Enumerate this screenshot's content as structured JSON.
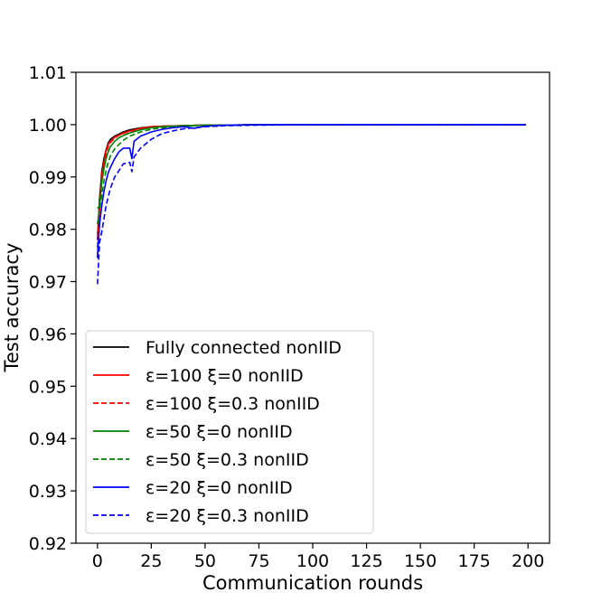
{
  "chart_data": {
    "type": "line",
    "title": "",
    "xlabel": "Communication rounds",
    "ylabel": "Test accuracy",
    "xlim": [
      -10,
      210
    ],
    "ylim": [
      0.92,
      1.01
    ],
    "xticks": [
      0,
      25,
      50,
      75,
      100,
      125,
      150,
      175,
      200
    ],
    "yticks": [
      0.92,
      0.93,
      0.94,
      0.95,
      0.96,
      0.97,
      0.98,
      0.99,
      1.0,
      1.01
    ],
    "ytick_labels": [
      "0.92",
      "0.93",
      "0.94",
      "0.95",
      "0.96",
      "0.97",
      "0.98",
      "0.99",
      "1.00",
      "1.01"
    ],
    "grid": false,
    "legend_position": "bottom-left",
    "series": [
      {
        "name": "Fully connected nonIID",
        "color": "#000000",
        "dash": "solid",
        "x": [
          0,
          1,
          2,
          3,
          4,
          5,
          6,
          8,
          10,
          12,
          15,
          20,
          25,
          30,
          40,
          50,
          60,
          75,
          100,
          150,
          199
        ],
        "y": [
          0.978,
          0.986,
          0.991,
          0.9935,
          0.9952,
          0.9965,
          0.9972,
          0.9978,
          0.9982,
          0.9986,
          0.999,
          0.9994,
          0.9996,
          0.9997,
          0.9998,
          0.9999,
          0.9999,
          1.0,
          1.0,
          1.0,
          1.0
        ]
      },
      {
        "name": "ε=100 ξ=0 nonIID",
        "color": "#ff0000",
        "dash": "solid",
        "x": [
          0,
          1,
          2,
          3,
          4,
          5,
          6,
          8,
          10,
          12,
          15,
          20,
          25,
          30,
          40,
          50,
          60,
          75,
          100,
          150,
          199
        ],
        "y": [
          0.9745,
          0.984,
          0.99,
          0.9928,
          0.995,
          0.9962,
          0.9968,
          0.9976,
          0.998,
          0.9984,
          0.9988,
          0.9993,
          0.9996,
          0.9997,
          0.9998,
          0.9999,
          0.9999,
          1.0,
          1.0,
          1.0,
          1.0
        ]
      },
      {
        "name": "ε=100 ξ=0.3 nonIID",
        "color": "#ff0000",
        "dash": "dashed",
        "x": [
          0,
          1,
          2,
          3,
          4,
          5,
          6,
          8,
          10,
          12,
          15,
          20,
          25,
          30,
          40,
          50,
          60,
          75,
          100,
          150,
          199
        ],
        "y": [
          0.9765,
          0.985,
          0.9905,
          0.9925,
          0.9945,
          0.9958,
          0.9966,
          0.9974,
          0.998,
          0.9983,
          0.9987,
          0.9992,
          0.9995,
          0.9997,
          0.9998,
          0.9999,
          0.9999,
          1.0,
          1.0,
          1.0,
          1.0
        ]
      },
      {
        "name": "ε=50 ξ=0 nonIID",
        "color": "#008000",
        "dash": "solid",
        "x": [
          0,
          1,
          2,
          3,
          4,
          5,
          6,
          8,
          10,
          12,
          15,
          20,
          25,
          30,
          40,
          50,
          60,
          75,
          100,
          150,
          199
        ],
        "y": [
          0.984,
          0.9845,
          0.989,
          0.9915,
          0.9935,
          0.9948,
          0.9958,
          0.9968,
          0.9975,
          0.9979,
          0.9984,
          0.999,
          0.9994,
          0.9996,
          0.9998,
          0.9999,
          0.9999,
          1.0,
          1.0,
          1.0,
          1.0
        ]
      },
      {
        "name": "ε=50 ξ=0.3 nonIID",
        "color": "#008000",
        "dash": "dashed",
        "x": [
          0,
          1,
          2,
          3,
          4,
          5,
          6,
          8,
          10,
          12,
          15,
          20,
          25,
          30,
          40,
          50,
          60,
          75,
          100,
          150,
          199
        ],
        "y": [
          0.981,
          0.984,
          0.9865,
          0.9892,
          0.9912,
          0.9928,
          0.994,
          0.9954,
          0.9962,
          0.997,
          0.9978,
          0.9986,
          0.9991,
          0.9994,
          0.9997,
          0.9999,
          0.9999,
          1.0,
          1.0,
          1.0,
          1.0
        ]
      },
      {
        "name": "ε=20 ξ=0 nonIID",
        "color": "#0000ff",
        "dash": "solid",
        "x": [
          0,
          1,
          2,
          3,
          4,
          5,
          6,
          8,
          10,
          12,
          15,
          16,
          17,
          20,
          25,
          30,
          35,
          40,
          45,
          50,
          60,
          75,
          100,
          150,
          199
        ],
        "y": [
          0.9745,
          0.981,
          0.9845,
          0.9872,
          0.9892,
          0.9908,
          0.9918,
          0.9935,
          0.9948,
          0.9955,
          0.9955,
          0.9935,
          0.9968,
          0.9978,
          0.9986,
          0.9991,
          0.9994,
          0.9996,
          0.9993,
          0.9997,
          0.9999,
          1.0,
          1.0,
          1.0,
          1.0
        ]
      },
      {
        "name": "ε=20 ξ=0.3 nonIID",
        "color": "#0000ff",
        "dash": "dashed",
        "x": [
          0,
          1,
          2,
          3,
          4,
          5,
          6,
          8,
          10,
          12,
          15,
          16,
          17,
          20,
          25,
          30,
          35,
          40,
          50,
          60,
          75,
          100,
          150,
          199
        ],
        "y": [
          0.9695,
          0.9775,
          0.9795,
          0.982,
          0.9845,
          0.9862,
          0.9878,
          0.99,
          0.9912,
          0.9925,
          0.9928,
          0.991,
          0.9938,
          0.9955,
          0.9972,
          0.9983,
          0.9988,
          0.9992,
          0.9996,
          0.9998,
          0.9999,
          1.0,
          1.0,
          1.0
        ]
      }
    ]
  }
}
